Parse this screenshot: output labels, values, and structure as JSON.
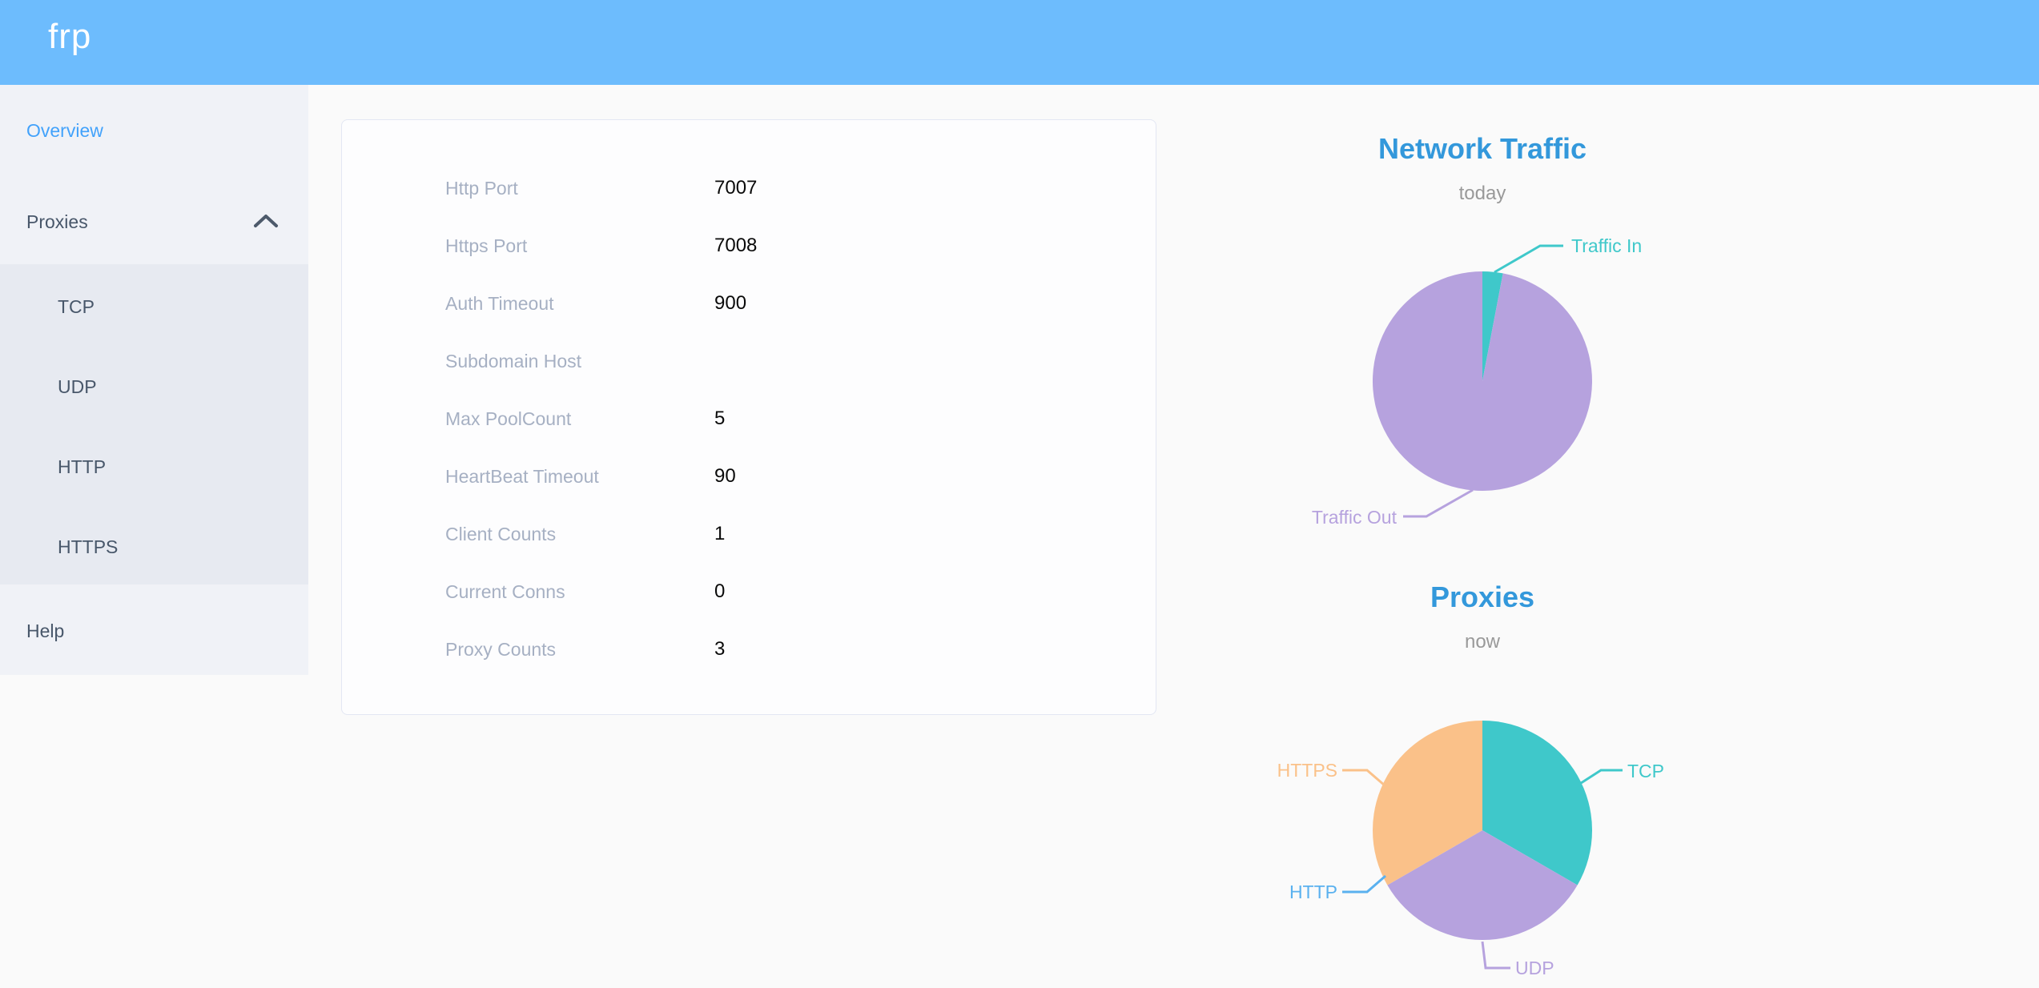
{
  "header": {
    "logo_text": "frp"
  },
  "sidebar": {
    "items": [
      {
        "label": "Overview",
        "state": "active"
      },
      {
        "label": "Proxies",
        "state": "expanded"
      },
      {
        "label": "TCP"
      },
      {
        "label": "UDP"
      },
      {
        "label": "HTTP"
      },
      {
        "label": "HTTPS"
      },
      {
        "label": "Help"
      }
    ]
  },
  "server_info": {
    "rows": [
      {
        "label": "Http Port",
        "value": "7007"
      },
      {
        "label": "Https Port",
        "value": "7008"
      },
      {
        "label": "Auth Timeout",
        "value": "900"
      },
      {
        "label": "Subdomain Host",
        "value": ""
      },
      {
        "label": "Max PoolCount",
        "value": "5"
      },
      {
        "label": "HeartBeat Timeout",
        "value": "90"
      },
      {
        "label": "Client Counts",
        "value": "1"
      },
      {
        "label": "Current Conns",
        "value": "0"
      },
      {
        "label": "Proxy Counts",
        "value": "3"
      }
    ]
  },
  "chart_data": [
    {
      "type": "pie",
      "title": "Network Traffic",
      "subtitle": "today",
      "legend_position": "none",
      "slices": [
        {
          "label": "Traffic In",
          "value": 3,
          "color": "#3fc8ca"
        },
        {
          "label": "Traffic Out",
          "value": 97,
          "color": "#b6a2de"
        }
      ]
    },
    {
      "type": "pie",
      "title": "Proxies",
      "subtitle": "now",
      "legend_position": "none",
      "slices": [
        {
          "label": "TCP",
          "value": 1,
          "color": "#3fc8ca"
        },
        {
          "label": "UDP",
          "value": 1,
          "color": "#b6a2de"
        },
        {
          "label": "HTTP",
          "value": 0,
          "color": "#5ab1ef"
        },
        {
          "label": "HTTPS",
          "value": 1,
          "color": "#fac189"
        }
      ]
    }
  ],
  "colors": {
    "header_bg": "#6dbcfd",
    "sidebar_bg": "#f0f2f7",
    "submenu_bg": "#e7eaf1",
    "sidebar_active": "#42a2fb",
    "sidebar_text": "#48576a",
    "chart_title_blue": "#3398db",
    "chart_subtitle_gray": "#999999",
    "info_label_gray": "#a6b0c3",
    "info_value_black": "#0a0a0a",
    "card_border": "#e3e7f3",
    "page_bg": "#fafafa",
    "pie_teal": "#3fc8ca",
    "pie_purple": "#b6a2de",
    "pie_blue": "#5ab1ef",
    "pie_orange": "#fac189"
  }
}
